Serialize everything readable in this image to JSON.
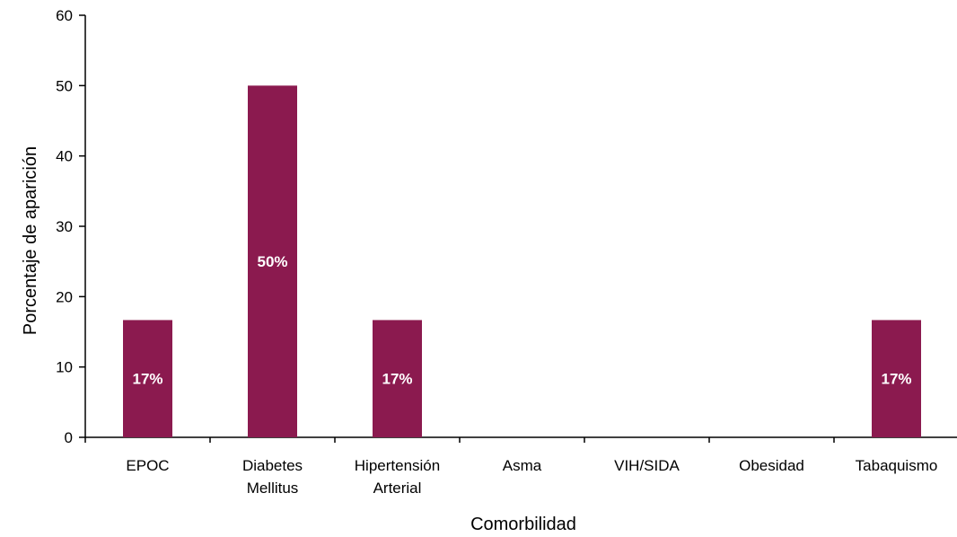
{
  "chart_data": {
    "type": "bar",
    "categories": [
      [
        "EPOC"
      ],
      [
        "Diabetes",
        "Mellitus"
      ],
      [
        "Hipertensión",
        "Arterial"
      ],
      [
        "Asma"
      ],
      [
        "VIH/SIDA"
      ],
      [
        "Obesidad"
      ],
      [
        "Tabaquismo"
      ]
    ],
    "values": [
      16.67,
      50,
      16.67,
      0,
      0,
      0,
      16.67
    ],
    "data_labels": [
      "17%",
      "50%",
      "17%",
      "",
      "",
      "",
      "17%"
    ],
    "xlabel": "Comorbilidad",
    "ylabel": "Porcentaje de aparición",
    "ylim": [
      0,
      60
    ],
    "yticks": [
      0,
      10,
      20,
      30,
      40,
      50,
      60
    ],
    "bar_color": "#8B1A4F",
    "grid": false
  }
}
